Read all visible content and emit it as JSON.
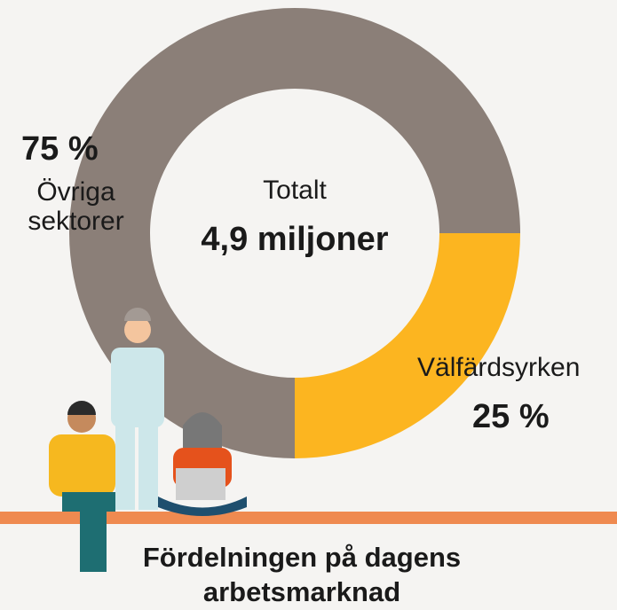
{
  "chart_data": {
    "type": "donut",
    "categories": [
      "Övriga sektorer",
      "Välfärdsyrken"
    ],
    "values": [
      75,
      25
    ],
    "value_labels": [
      "75 %",
      "25 %"
    ],
    "colors": [
      "#8b7f78",
      "#fcb520"
    ],
    "center_label": "Totalt",
    "center_value": "4,9 miljoner",
    "title": "Fördelningen på dagens arbetsmarknad"
  }
}
